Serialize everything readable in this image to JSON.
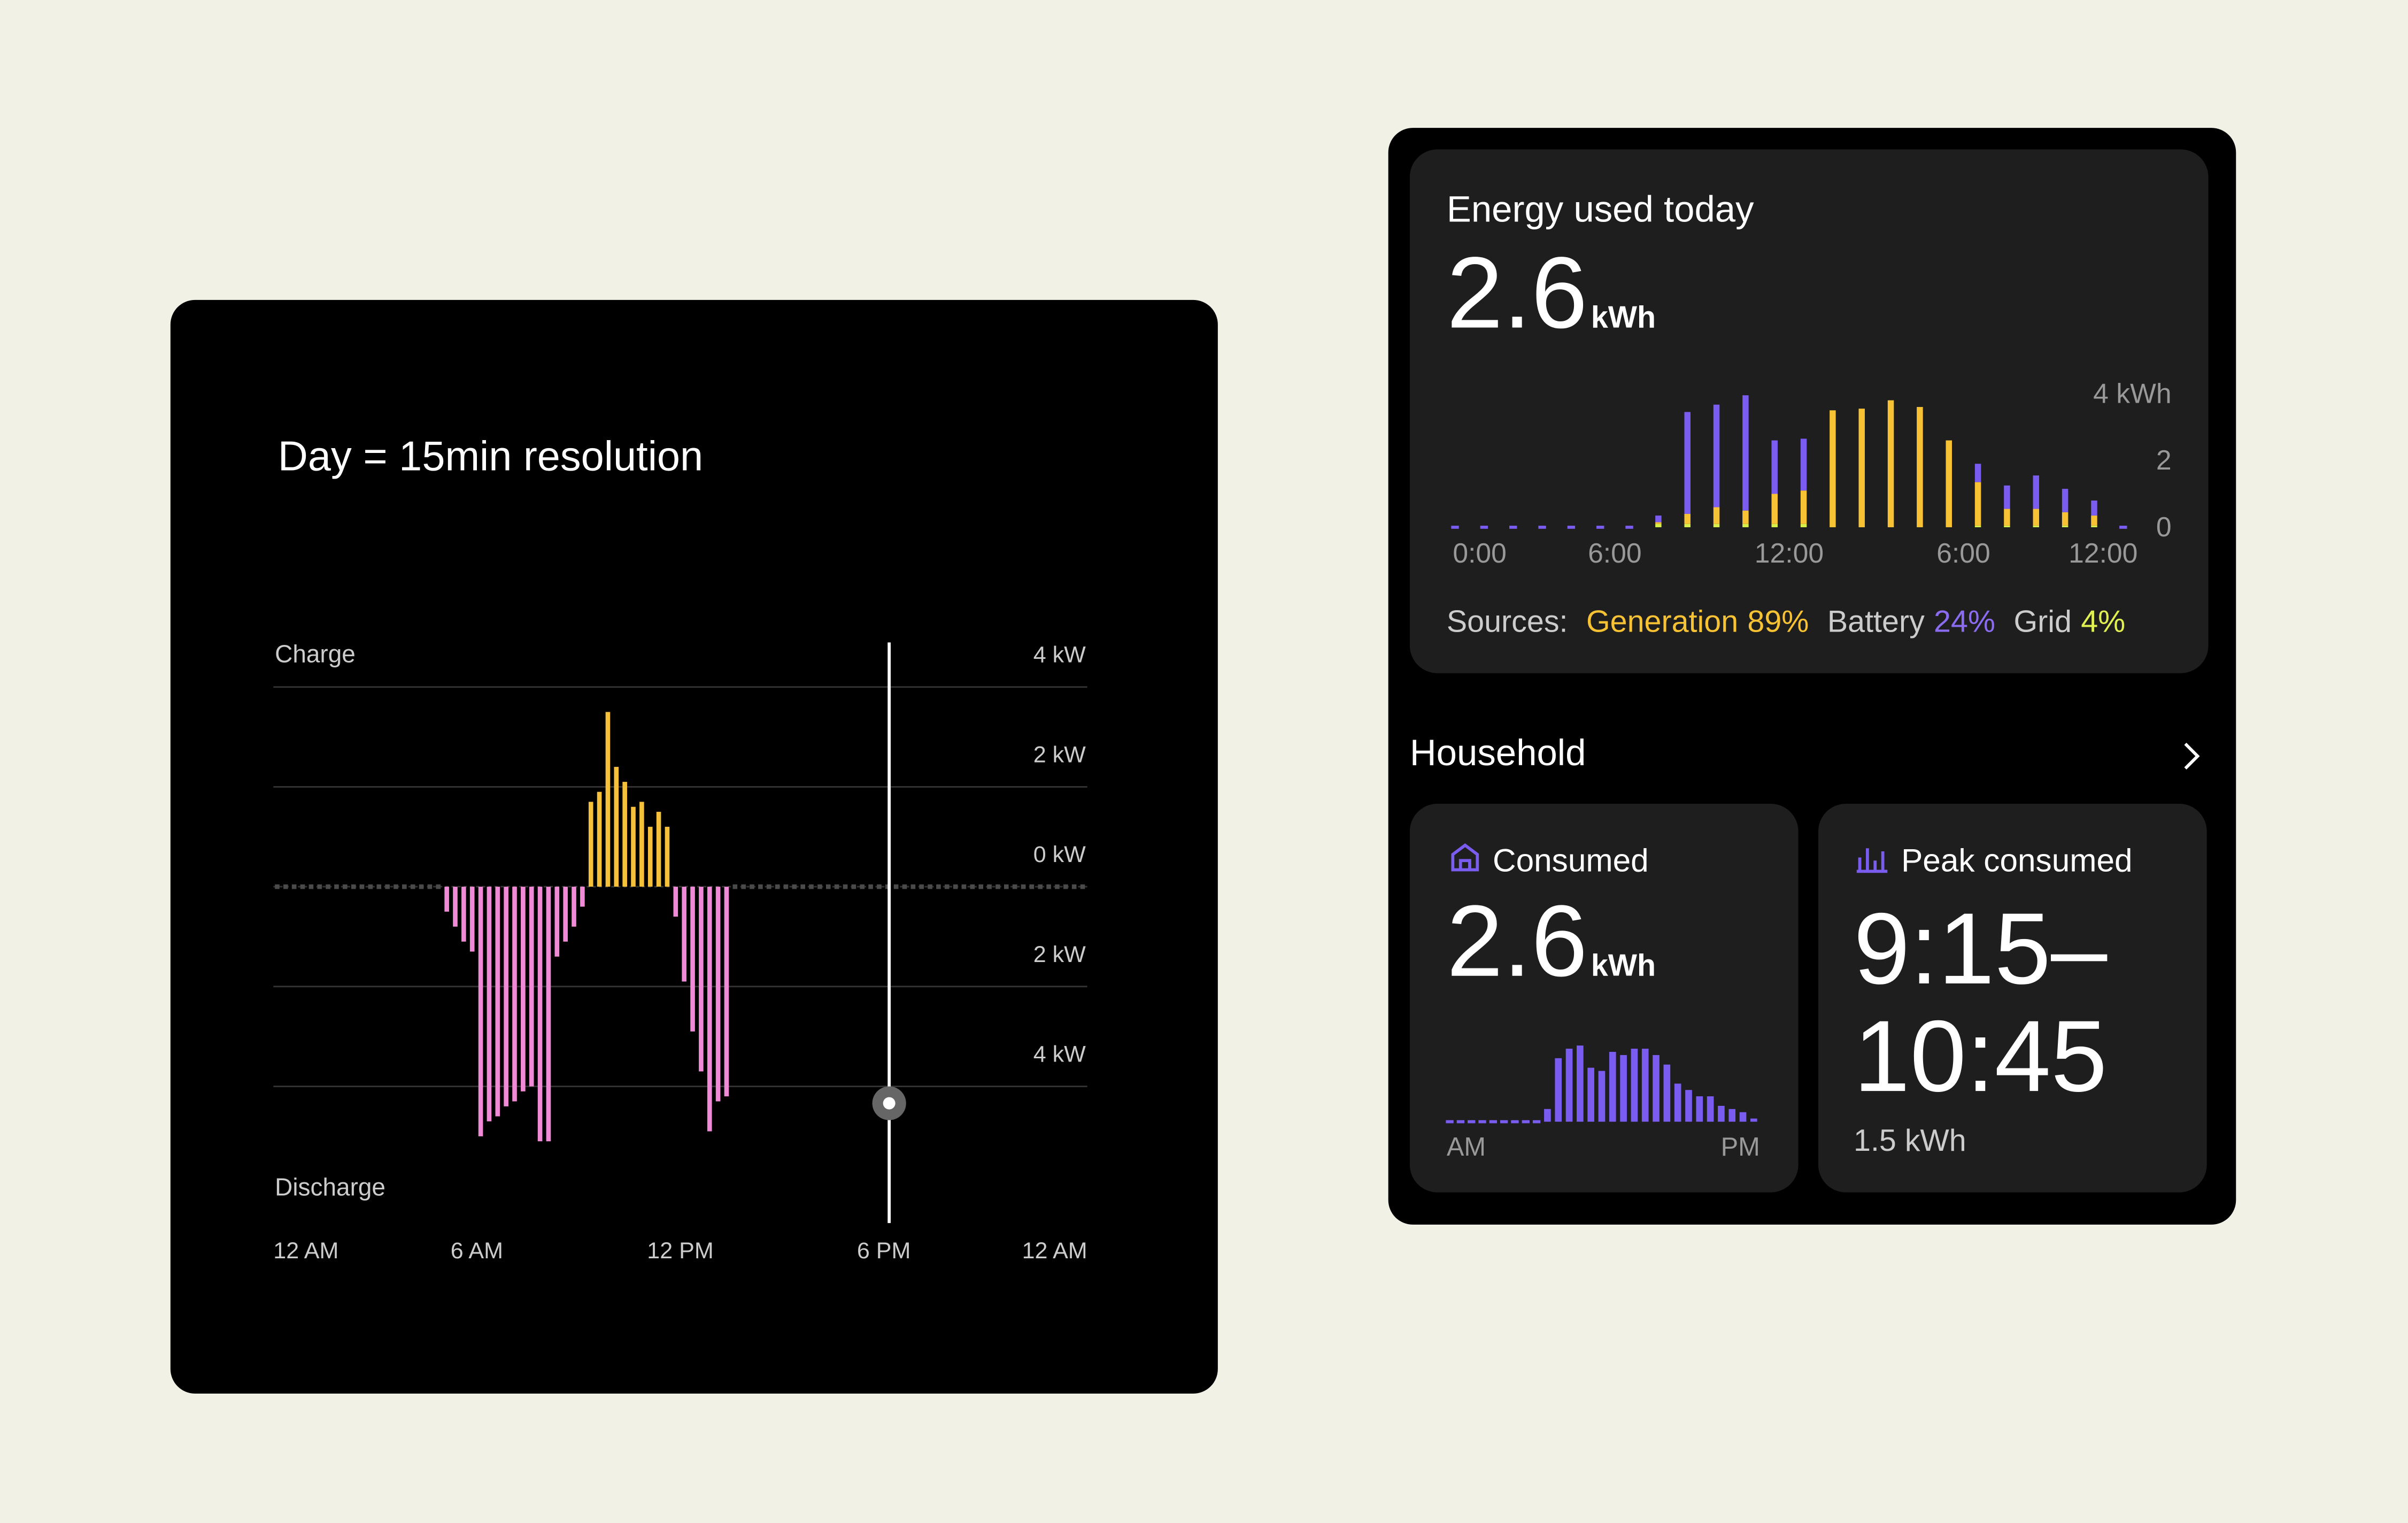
{
  "chart_data": [
    {
      "type": "bar",
      "title": "Day = 15min resolution",
      "y_top_label": "Charge",
      "y_bottom_label": "Discharge",
      "x": [
        0,
        0.25,
        0.5,
        0.75,
        1,
        1.25,
        1.5,
        1.75,
        2,
        2.25,
        2.5,
        2.75,
        3,
        3.25,
        3.5,
        3.75,
        4,
        4.25,
        4.5,
        4.75,
        5,
        5.25,
        5.5,
        5.75,
        6,
        6.25,
        6.5,
        6.75,
        7,
        7.25,
        7.5,
        7.75,
        8,
        8.25,
        8.5,
        8.75,
        9,
        9.25,
        9.5,
        9.75,
        10,
        10.25,
        10.5,
        10.75,
        11,
        11.25,
        11.5,
        11.75,
        12,
        12.25,
        12.5,
        12.75,
        13,
        13.25,
        13.5,
        13.75,
        14,
        14.25,
        14.5,
        14.75,
        15,
        15.25,
        15.5,
        15.75,
        16,
        16.25,
        16.5,
        16.75,
        17,
        17.25,
        17.5,
        17.75,
        18,
        18.25,
        18.5,
        18.75,
        19,
        19.25,
        19.5,
        19.75,
        20,
        20.25,
        20.5,
        20.75,
        21,
        21.25,
        21.5,
        21.75,
        22,
        22.25,
        22.5,
        22.75,
        23,
        23.25,
        23.5,
        23.75
      ],
      "values": [
        0,
        0,
        0,
        0,
        0,
        0,
        0,
        0,
        0,
        0,
        0,
        0,
        0,
        0,
        0,
        0,
        0,
        0,
        0,
        0,
        -0.5,
        -0.8,
        -1.1,
        -1.3,
        -5.0,
        -4.7,
        -4.6,
        -4.4,
        -4.3,
        -4.1,
        -4.0,
        -5.1,
        -5.1,
        -1.4,
        -1.1,
        -0.8,
        -0.4,
        1.7,
        1.9,
        3.5,
        2.4,
        2.1,
        1.6,
        1.7,
        1.2,
        1.5,
        1.2,
        -0.6,
        -1.9,
        -2.9,
        -3.7,
        -4.9,
        -4.3,
        -4.2,
        0,
        0,
        0,
        0,
        0,
        0,
        0,
        0,
        0,
        0,
        0,
        0,
        0,
        0,
        0,
        0,
        0,
        0,
        0,
        0,
        0,
        0,
        0,
        0,
        0,
        0,
        0,
        0,
        0,
        0,
        0,
        0,
        0,
        0,
        0,
        0,
        0,
        0,
        0,
        0,
        0,
        0
      ],
      "positive_color": "#f5c13a",
      "negative_color": "#f08ad6",
      "zero_color": "#4a4a4a",
      "xlim": [
        0,
        24
      ],
      "xticks": [
        {
          "value": 0,
          "label": "12 AM"
        },
        {
          "value": 6,
          "label": "6 AM"
        },
        {
          "value": 12,
          "label": "12 PM"
        },
        {
          "value": 18,
          "label": "6 PM"
        },
        {
          "value": 24,
          "label": "12 AM"
        }
      ],
      "ylim": [
        -5.2,
        4.4
      ],
      "yticks": [
        {
          "value": 4,
          "label": "4 kW"
        },
        {
          "value": 2,
          "label": "2 kW"
        },
        {
          "value": 0,
          "label": "0 kW"
        },
        {
          "value": -2,
          "label": "2 kW"
        },
        {
          "value": -4,
          "label": "4 kW"
        }
      ],
      "grid": true
    },
    {
      "type": "stacked_bar",
      "title": "Energy used today",
      "value": "2.6",
      "unit": "kWh",
      "sources_label": "Sources:",
      "x": [
        0,
        1,
        2,
        3,
        4,
        5,
        6,
        7,
        8,
        9,
        10,
        11,
        12,
        13,
        14,
        15,
        16,
        17,
        18,
        19,
        20,
        21,
        22,
        23
      ],
      "series": [
        {
          "name": "Generation",
          "share": "89%",
          "color": "#f7c234",
          "values": [
            0,
            0,
            0,
            0,
            0,
            0,
            0,
            0.05,
            0.3,
            0.5,
            0.4,
            0.9,
            1.0,
            3.5,
            3.55,
            3.8,
            3.6,
            2.6,
            1.3,
            0.5,
            0.5,
            0.4,
            0.3,
            0
          ]
        },
        {
          "name": "Battery",
          "share": "24%",
          "color": "#7b5cf0",
          "values": [
            0,
            0,
            0,
            0,
            0,
            0,
            0,
            0.2,
            3.05,
            3.07,
            3.45,
            1.6,
            1.55,
            0,
            0,
            0,
            0,
            0,
            0.55,
            0.7,
            1.0,
            0.7,
            0.45,
            0
          ]
        },
        {
          "name": "Grid",
          "share": "4%",
          "color": "#d8ef4a",
          "values": [
            0,
            0,
            0,
            0,
            0,
            0,
            0,
            0.1,
            0.1,
            0.1,
            0.1,
            0.1,
            0.1,
            0,
            0,
            0,
            0,
            0,
            0.05,
            0.05,
            0.05,
            0.05,
            0.05,
            0
          ]
        }
      ],
      "xlim": [
        0,
        24
      ],
      "xticks": [
        {
          "value": 0,
          "label": "0:00"
        },
        {
          "value": 6,
          "label": "6:00"
        },
        {
          "value": 12,
          "label": "12:00"
        },
        {
          "value": 18,
          "label": "6:00"
        },
        {
          "value": 24,
          "label": "12:00"
        }
      ],
      "ylim": [
        0,
        4
      ],
      "yticks": [
        {
          "value": 4,
          "label": "4 kWh"
        },
        2,
        0
      ]
    },
    {
      "type": "bar",
      "title": "Consumed",
      "value": "2.6",
      "unit": "kWh",
      "x_labels": [
        "AM",
        "PM"
      ],
      "values": [
        0,
        0,
        0,
        0,
        0,
        0,
        0,
        0,
        0,
        0.04,
        0.2,
        0.23,
        0.24,
        0.17,
        0.16,
        0.22,
        0.21,
        0.23,
        0.23,
        0.21,
        0.18,
        0.12,
        0.1,
        0.08,
        0.08,
        0.05,
        0.04,
        0.03,
        0.01
      ],
      "color": "#7b5cf0",
      "ylim": [
        0,
        0.3
      ]
    }
  ],
  "household": {
    "title": "Household"
  },
  "peak": {
    "title": "Peak consumed",
    "line1": "9:15–",
    "line2": "10:45",
    "energy": "1.5 kWh"
  }
}
